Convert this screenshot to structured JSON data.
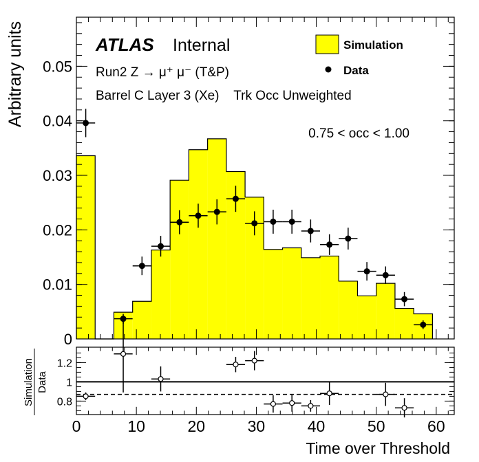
{
  "chart_data": [
    {
      "type": "bar",
      "panel": "main",
      "ylabel": "Arbitrary units",
      "xlim": [
        0,
        63
      ],
      "ylim": [
        0,
        0.059
      ],
      "yticks": [
        0,
        0.01,
        0.02,
        0.03,
        0.04,
        0.05
      ],
      "ytick_labels": [
        "0",
        "0.01",
        "0.02",
        "0.03",
        "0.04",
        "0.05"
      ],
      "bin_width": 3.125,
      "series": [
        {
          "name": "Simulation",
          "type": "histogram",
          "color": "#ffff00",
          "bin_edges": [
            0,
            3.125,
            6.25,
            9.375,
            12.5,
            15.625,
            18.75,
            21.875,
            25,
            28.125,
            31.25,
            34.375,
            37.5,
            40.625,
            43.75,
            46.875,
            50,
            53.125,
            56.25,
            59.375
          ],
          "values": [
            0.0336,
            0,
            0.0049,
            0.0069,
            0.0163,
            0.0291,
            0.0347,
            0.0367,
            0.0307,
            0.026,
            0.0164,
            0.0167,
            0.0149,
            0.0152,
            0.0106,
            0.0079,
            0.0102,
            0.0056,
            0.0046
          ]
        },
        {
          "name": "Data",
          "type": "points",
          "color": "#000000",
          "x": [
            1.56,
            7.81,
            10.94,
            14.06,
            17.19,
            20.31,
            23.44,
            26.56,
            29.69,
            32.81,
            35.94,
            39.06,
            42.19,
            45.31,
            48.44,
            51.56,
            54.69,
            57.81
          ],
          "y": [
            0.0396,
            0.0037,
            0.0134,
            0.017,
            0.0214,
            0.0226,
            0.0233,
            0.0257,
            0.0212,
            0.0215,
            0.0215,
            0.0198,
            0.0173,
            0.0184,
            0.0124,
            0.0117,
            0.0073,
            0.0026
          ],
          "yerr": [
            0.0026,
            0.0009,
            0.0017,
            0.0019,
            0.0022,
            0.0022,
            0.0023,
            0.0024,
            0.0022,
            0.0022,
            0.0022,
            0.0021,
            0.0019,
            0.002,
            0.0017,
            0.0016,
            0.0013,
            0.0008
          ]
        }
      ],
      "annotations": {
        "atlas": "ATLAS",
        "internal": "Internal",
        "line1": "Run2 Z → μ⁺ μ⁻ (T&P)",
        "line2": "Barrel C Layer 3 (Xe)    Trk Occ Unweighted",
        "range": "0.75 < occ < 1.00"
      },
      "legend": {
        "placement": "top-right",
        "entries": [
          "Simulation",
          "Data"
        ]
      }
    },
    {
      "type": "scatter",
      "panel": "ratio",
      "ylabel_top": "Simulation",
      "ylabel_bottom": "Data",
      "xlabel": "Time over Threshold",
      "xlim": [
        0,
        63
      ],
      "ylim": [
        0.66,
        1.36
      ],
      "yticks": [
        0.8,
        1.0,
        1.2
      ],
      "ytick_labels": [
        "0.8",
        "1",
        "1.2"
      ],
      "xticks": [
        0,
        10,
        20,
        30,
        40,
        50,
        60
      ],
      "xtick_labels": [
        "0",
        "10",
        "20",
        "30",
        "40",
        "50",
        "60"
      ],
      "reference_lines": [
        {
          "y": 1.0,
          "style": "solid"
        },
        {
          "y": 0.87,
          "style": "dashed"
        }
      ],
      "points": {
        "x": [
          1.56,
          7.81,
          14.06,
          26.56,
          29.69,
          32.81,
          35.94,
          39.06,
          42.19,
          51.56,
          54.69
        ],
        "y": [
          0.85,
          1.29,
          1.03,
          1.18,
          1.22,
          0.77,
          0.78,
          0.75,
          0.88,
          0.87,
          0.73
        ],
        "yerr": [
          0.04,
          0.4,
          0.13,
          0.08,
          0.1,
          0.09,
          0.09,
          0.06,
          0.12,
          0.12,
          0.1
        ]
      }
    }
  ]
}
